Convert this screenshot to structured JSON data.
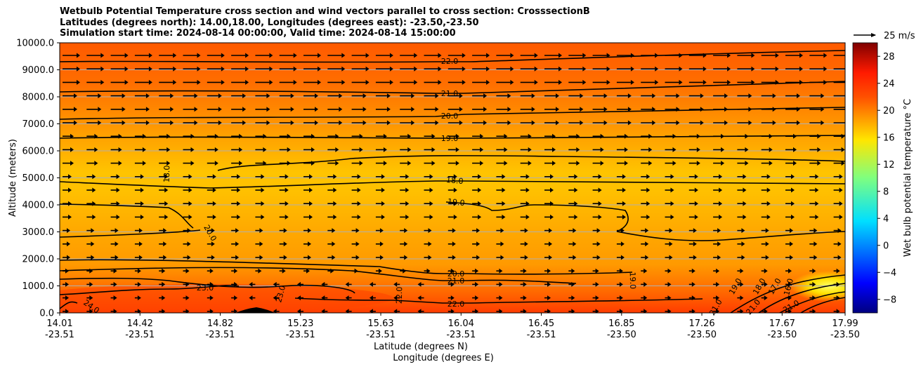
{
  "chart_data": {
    "type": "heatmap",
    "title_lines": [
      "Wetbulb Potential Temperature cross section and wind vectors parallel to cross section: CrosssectionB",
      "Latitudes (degrees north): 14.00,18.00, Longitudes (degrees east): -23.50,-23.50",
      "Simulation start time: 2024-08-14 00:00:00, Valid time: 2024-08-14 15:00:00"
    ],
    "ylabel": "Altitude (meters)",
    "xlabel_lines": [
      "Latitude (degrees N)",
      "Longitude (degrees E)"
    ],
    "ylim": [
      0,
      10000
    ],
    "y_ticks": [
      "0.0",
      "1000.0",
      "2000.0",
      "3000.0",
      "4000.0",
      "5000.0",
      "6000.0",
      "7000.0",
      "8000.0",
      "9000.0",
      "10000.0"
    ],
    "x_ticks": [
      {
        "lat": "14.01",
        "lon": "-23.51"
      },
      {
        "lat": "14.42",
        "lon": "-23.51"
      },
      {
        "lat": "14.82",
        "lon": "-23.51"
      },
      {
        "lat": "15.23",
        "lon": "-23.51"
      },
      {
        "lat": "15.63",
        "lon": "-23.51"
      },
      {
        "lat": "16.04",
        "lon": "-23.51"
      },
      {
        "lat": "16.45",
        "lon": "-23.51"
      },
      {
        "lat": "16.85",
        "lon": "-23.50"
      },
      {
        "lat": "17.26",
        "lon": "-23.50"
      },
      {
        "lat": "17.67",
        "lon": "-23.50"
      },
      {
        "lat": "17.99",
        "lon": "-23.50"
      }
    ],
    "colorbar": {
      "label": "Wet bulb potential temperature °C",
      "range": [
        -10,
        30
      ],
      "ticks": [
        "28",
        "24",
        "20",
        "16",
        "12",
        "8",
        "4",
        "0",
        "−4",
        "−8"
      ],
      "tick_values": [
        28,
        24,
        20,
        16,
        12,
        8,
        4,
        0,
        -4,
        -8
      ],
      "colormap": "jet"
    },
    "quiver_key": {
      "label": "25 m/s"
    },
    "grid": true,
    "contour_labels": [
      "22.0",
      "21.0",
      "20.0",
      "19.0",
      "18.0",
      "19.0",
      "20.0",
      "21.0",
      "22.0",
      "18.0",
      "20.0",
      "23.0",
      "23.0",
      "22.0",
      "24.0",
      "19.0",
      "19.0",
      "18.0",
      "17.0",
      "16.0",
      "21.0",
      "21.0",
      "21.0"
    ],
    "temperature_field_by_altitude": {
      "altitude_m": [
        0,
        1000,
        2000,
        3000,
        4000,
        5000,
        6000,
        7000,
        8000,
        9000,
        10000
      ],
      "value_c": [
        23.5,
        22,
        20,
        19.5,
        19,
        18.5,
        19.5,
        20.5,
        21.5,
        22.2,
        22.8
      ]
    }
  }
}
